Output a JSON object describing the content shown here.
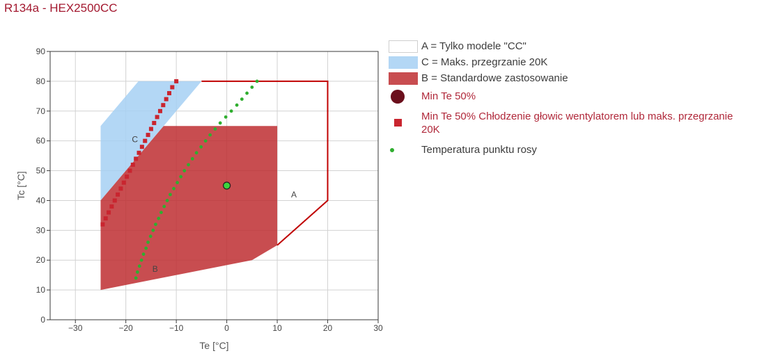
{
  "theme": {
    "title_color": "#a3182f",
    "alert_text_color": "#b0283a",
    "text_color": "#3c3c3c"
  },
  "chart_data": {
    "type": "scatter",
    "title": "R134a - HEX2500CC",
    "xlabel": "Te [°C]",
    "ylabel": "Tc [°C]",
    "xlim": [
      -35,
      30
    ],
    "ylim": [
      0,
      90
    ],
    "xticks": [
      -30,
      -20,
      -10,
      0,
      10,
      20,
      30
    ],
    "xtick_labels": [
      "−30",
      "−20",
      "−10",
      "0",
      "10",
      "20",
      "30"
    ],
    "yticks": [
      0,
      10,
      20,
      30,
      40,
      50,
      60,
      70,
      80,
      90
    ],
    "ytick_labels": [
      "0",
      "10",
      "20",
      "30",
      "40",
      "50",
      "60",
      "70",
      "80",
      "90"
    ],
    "grid": true,
    "legend_position": "right",
    "regions": [
      {
        "label": "A",
        "legend": "A = Tylko modele \"CC\"",
        "label_at": [
          13.3,
          42
        ],
        "stroke": "#c00000",
        "legend_swatch": "#ffffff",
        "points": [
          [
            -5,
            80
          ],
          [
            20,
            80
          ],
          [
            20,
            40
          ],
          [
            10,
            25
          ]
        ]
      },
      {
        "label": "C",
        "legend": "C = Maks. przegrzanie 20K",
        "label_at": [
          -18.2,
          60.5
        ],
        "fill": "#a6d0f3",
        "points": [
          [
            -25,
            40
          ],
          [
            -25,
            65
          ],
          [
            -17.5,
            80
          ],
          [
            -5,
            80
          ],
          [
            -12.5,
            65
          ]
        ]
      },
      {
        "label": "B",
        "legend": "B = Standardowe zastosowanie",
        "label_at": [
          -14.2,
          17
        ],
        "fill": "#be2e31",
        "points": [
          [
            -25,
            10
          ],
          [
            5,
            20
          ],
          [
            10,
            25
          ],
          [
            10,
            65
          ],
          [
            -12.5,
            65
          ],
          [
            -25,
            40
          ]
        ]
      }
    ],
    "series": [
      {
        "name": "Min Te 50%",
        "marker": "circle",
        "color": "#6b0f1c",
        "x": [],
        "y": []
      },
      {
        "name": "Min Te 50% Chłodzenie głowic wentylatorem lub maks. przegrzanie 20K",
        "marker": "square",
        "color": "#c9252f",
        "x": [
          -24.6,
          -24.0,
          -23.4,
          -22.8,
          -22.2,
          -21.6,
          -21.0,
          -20.4,
          -19.8,
          -19.2,
          -18.6,
          -18.0,
          -17.4,
          -16.8,
          -16.2,
          -15.6,
          -15.0,
          -14.4,
          -13.8,
          -13.2,
          -12.6,
          -12.0,
          -11.4,
          -10.8,
          -10.0
        ],
        "y": [
          32,
          34,
          36,
          38,
          40,
          42,
          44,
          46,
          48,
          50,
          52,
          54,
          56,
          58,
          60,
          62,
          64,
          66,
          68,
          70,
          72,
          74,
          76,
          78,
          80
        ]
      },
      {
        "name": "Temperatura punktu rosy",
        "marker": "dot",
        "color": "#2fae2f",
        "x": [
          -18.0,
          -17.7,
          -17.3,
          -16.9,
          -16.5,
          -16.0,
          -15.6,
          -15.1,
          -14.6,
          -14.1,
          -13.5,
          -13.0,
          -12.4,
          -11.8,
          -11.2,
          -10.5,
          -9.8,
          -9.1,
          -8.4,
          -7.6,
          -6.8,
          -6.0,
          -5.1,
          -4.2,
          -3.3,
          -2.3,
          -1.3,
          -0.2,
          0.9,
          2.0,
          3.0,
          4.0,
          5.0,
          6.0
        ],
        "y": [
          14,
          16,
          18,
          20,
          22,
          24,
          26,
          28,
          30,
          32,
          34,
          36,
          38,
          40,
          42,
          44,
          46,
          48,
          50,
          52,
          54,
          56,
          58,
          60,
          62,
          64,
          66,
          68,
          70,
          72,
          74,
          76,
          78,
          80
        ]
      }
    ],
    "marked_points": [
      {
        "x": 0,
        "y": 45,
        "color": "#3dd43d",
        "outline": "#1f1f1f"
      }
    ]
  }
}
